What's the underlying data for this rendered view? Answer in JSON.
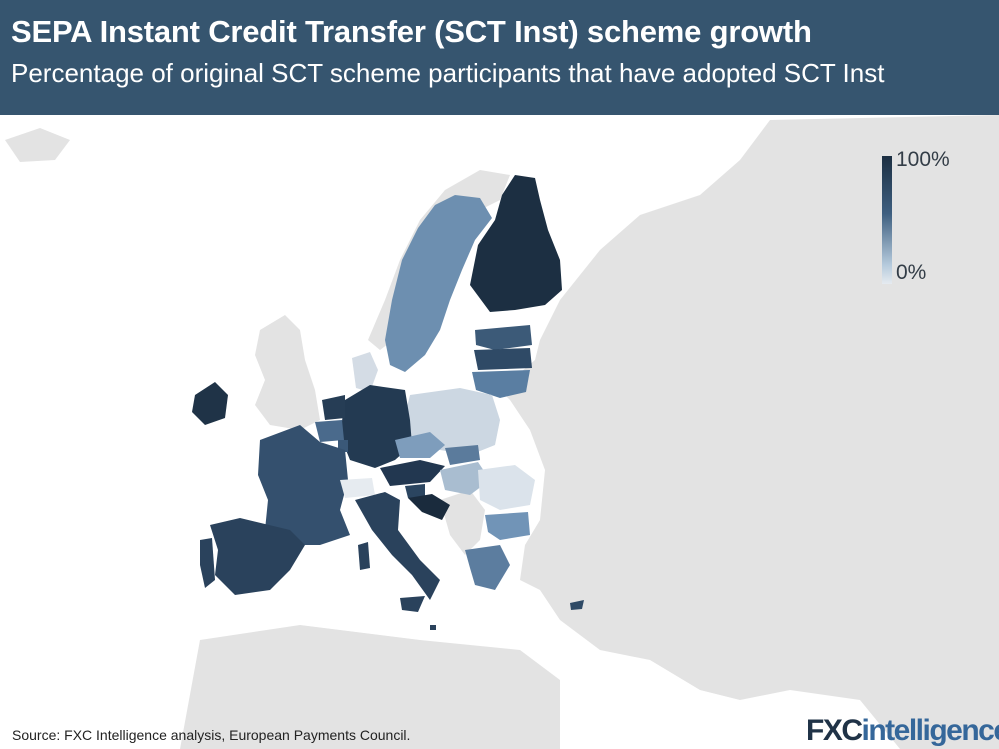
{
  "header": {
    "title": "SEPA Instant Credit Transfer (SCT Inst) scheme growth",
    "subtitle": "Percentage of original SCT scheme participants that have adopted SCT Inst"
  },
  "legend": {
    "max_label": "100%",
    "min_label": "0%",
    "color_max": "#1c2f42",
    "color_min": "#e6ebf0"
  },
  "colors": {
    "header_bg": "#36556f",
    "land_other": "#e3e3e3",
    "water": "#ffffff"
  },
  "map": {
    "regions": [
      {
        "name": "finland",
        "level": 0.97
      },
      {
        "name": "sweden",
        "level": 0.55
      },
      {
        "name": "estonia",
        "level": 0.75
      },
      {
        "name": "latvia",
        "level": 0.85
      },
      {
        "name": "lithuania",
        "level": 0.6
      },
      {
        "name": "poland",
        "level": 0.18
      },
      {
        "name": "germany",
        "level": 0.92
      },
      {
        "name": "netherlands",
        "level": 0.9
      },
      {
        "name": "belgium",
        "level": 0.7
      },
      {
        "name": "luxembourg",
        "level": 0.8
      },
      {
        "name": "france",
        "level": 0.82
      },
      {
        "name": "spain",
        "level": 0.9
      },
      {
        "name": "portugal",
        "level": 0.9
      },
      {
        "name": "ireland",
        "level": 0.95
      },
      {
        "name": "italy",
        "level": 0.88
      },
      {
        "name": "austria",
        "level": 0.92
      },
      {
        "name": "czechia",
        "level": 0.5
      },
      {
        "name": "slovakia",
        "level": 0.65
      },
      {
        "name": "hungary",
        "level": 0.3
      },
      {
        "name": "slovenia",
        "level": 0.85
      },
      {
        "name": "croatia",
        "level": 0.97
      },
      {
        "name": "romania",
        "level": 0.25
      },
      {
        "name": "bulgaria",
        "level": 0.55
      },
      {
        "name": "greece",
        "level": 0.6
      },
      {
        "name": "cyprus",
        "level": 0.8
      },
      {
        "name": "malta",
        "level": 0.85
      },
      {
        "name": "denmark",
        "level": 0.15
      },
      {
        "name": "switzerland",
        "level": 0.0
      }
    ]
  },
  "footer": {
    "source": "Source: FXC Intelligence analysis, European Payments Council.",
    "brand_fx": "FXC",
    "brand_rest": "intelligence"
  }
}
